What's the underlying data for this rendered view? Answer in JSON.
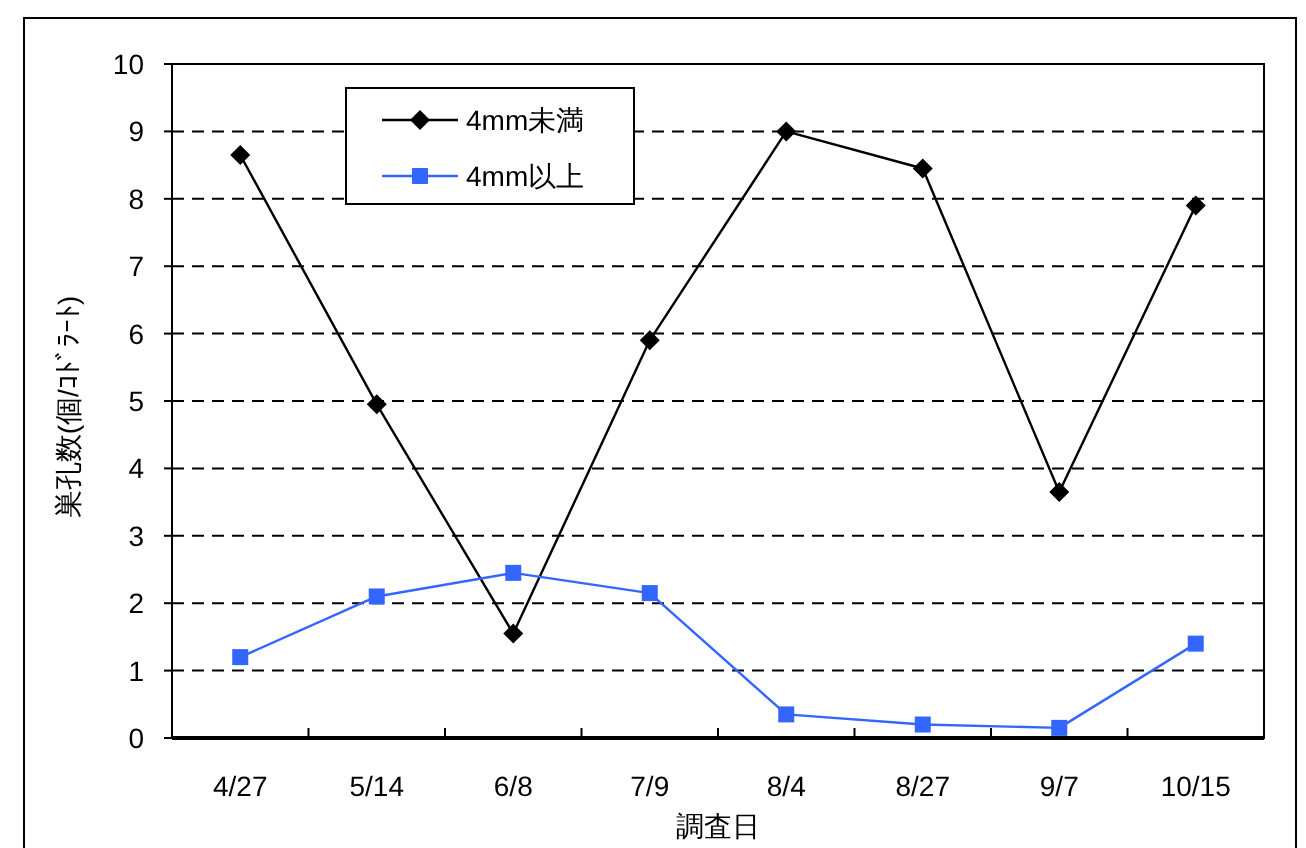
{
  "chart_data": {
    "type": "line",
    "xlabel": "調査日",
    "ylabel": "巣孔数(個/ｺﾄﾞﾗｰﾄ)",
    "categories": [
      "4/27",
      "5/14",
      "6/8",
      "7/9",
      "8/4",
      "8/27",
      "9/7",
      "10/15"
    ],
    "series": [
      {
        "name": "4mm未満",
        "color": "#000000",
        "marker": "diamond",
        "values": [
          8.65,
          4.95,
          1.55,
          5.9,
          9.0,
          8.45,
          3.65,
          7.9
        ]
      },
      {
        "name": "4mm以上",
        "color": "#3366ff",
        "marker": "square",
        "values": [
          1.2,
          2.1,
          2.45,
          2.15,
          0.35,
          0.2,
          0.15,
          1.4
        ]
      }
    ],
    "ylim": [
      0,
      10
    ],
    "yticks": [
      0,
      1,
      2,
      3,
      4,
      5,
      6,
      7,
      8,
      9,
      10
    ],
    "grid": "y",
    "legend": "top left"
  }
}
